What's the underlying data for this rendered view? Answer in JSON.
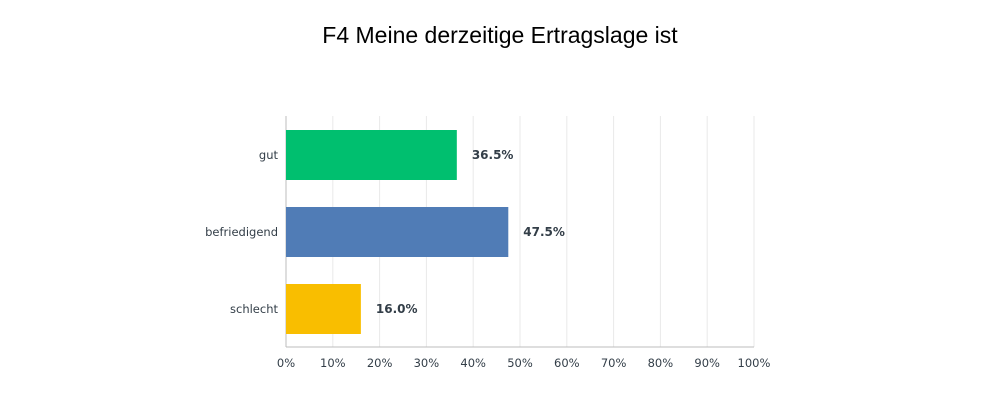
{
  "chart_data": {
    "type": "bar",
    "orientation": "horizontal",
    "title": "F4 Meine derzeitige Ertragslage ist",
    "categories": [
      "gut",
      "befriedigend",
      "schlecht"
    ],
    "values": [
      36.5,
      47.5,
      16.0
    ],
    "value_labels": [
      "36.5%",
      "47.5%",
      "16.0%"
    ],
    "colors": [
      "#00bf6f",
      "#507cb6",
      "#f9be00"
    ],
    "xlim": [
      0,
      100
    ],
    "x_ticks": [
      0,
      10,
      20,
      30,
      40,
      50,
      60,
      70,
      80,
      90,
      100
    ],
    "x_tick_labels": [
      "0%",
      "10%",
      "20%",
      "30%",
      "40%",
      "50%",
      "60%",
      "70%",
      "80%",
      "90%",
      "100%"
    ],
    "xlabel": "",
    "ylabel": "",
    "grid": true,
    "legend": false
  }
}
